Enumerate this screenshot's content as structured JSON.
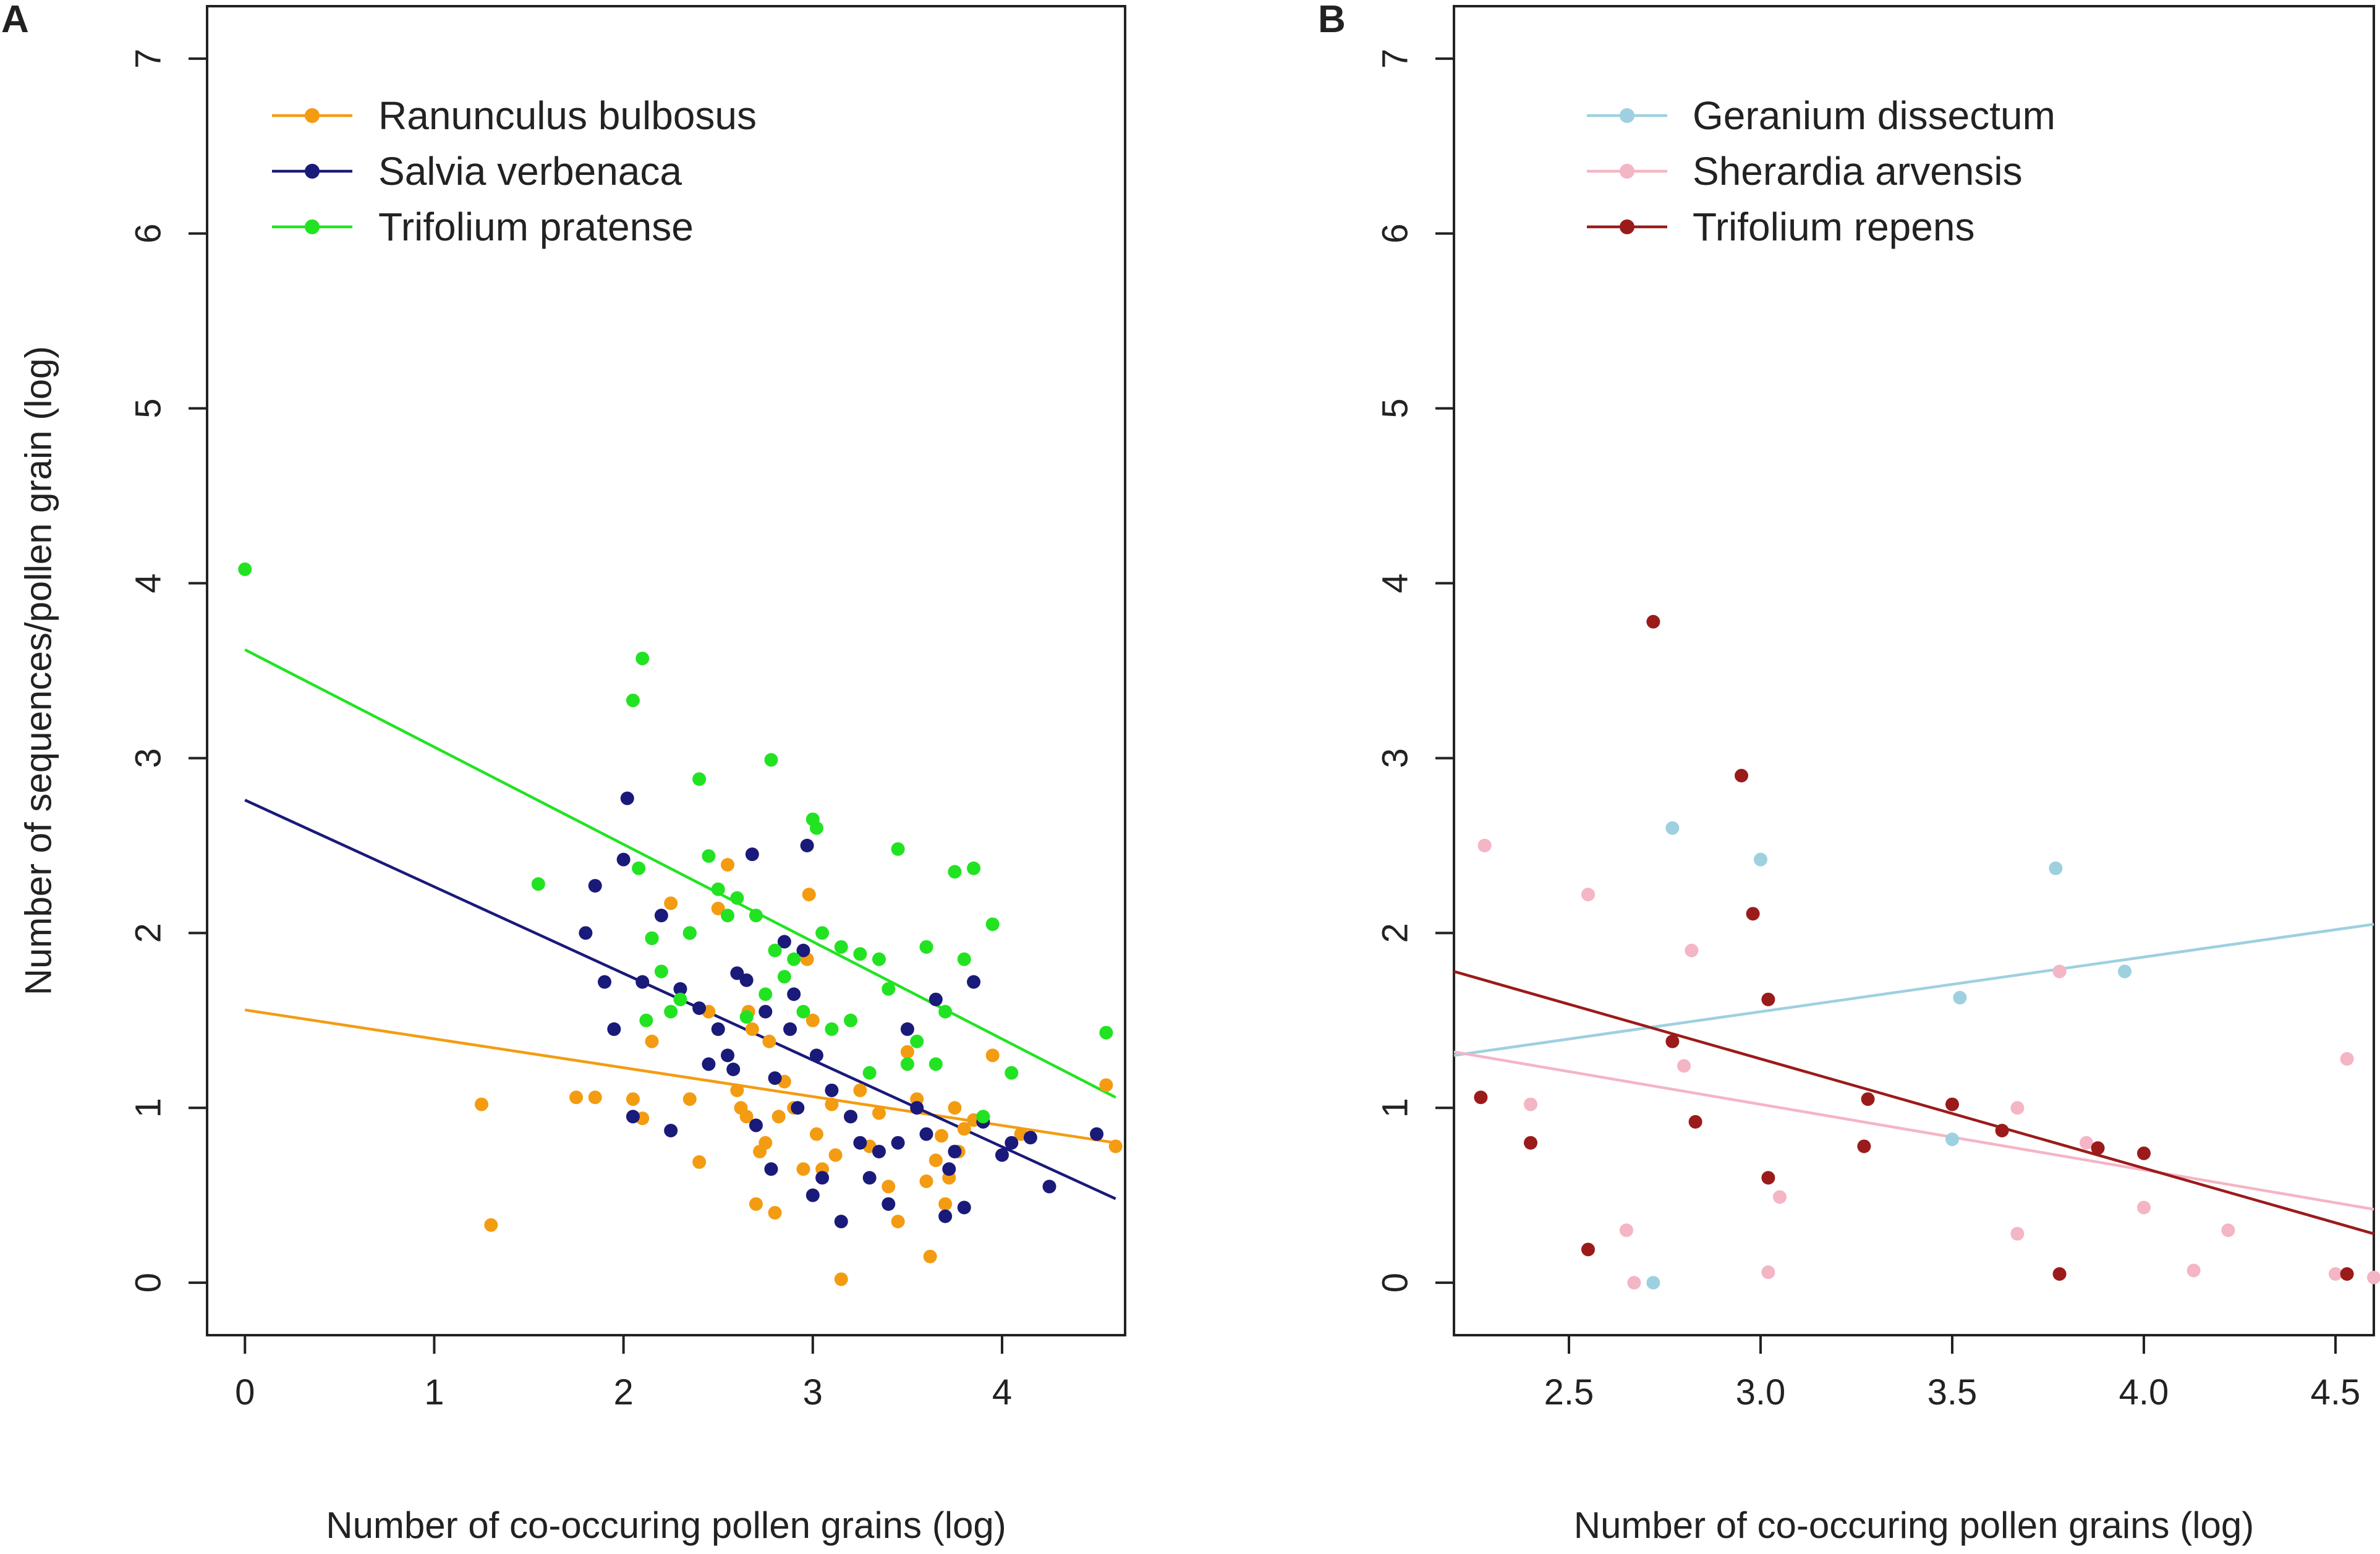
{
  "chart_data": [
    {
      "type": "scatter",
      "panel": "A",
      "xlabel": "Number of co-occuring pollen grains (log)",
      "ylabel": "Number of sequences/pollen grain (log)",
      "xlim": [
        -0.2,
        4.65
      ],
      "ylim": [
        -0.3,
        7.3
      ],
      "x_ticks": [
        0,
        1,
        2,
        3,
        4
      ],
      "y_ticks": [
        0,
        1,
        2,
        3,
        4,
        5,
        6,
        7
      ],
      "legend_position": "top-left",
      "series": [
        {
          "name": "Ranunculus bulbosus",
          "color": "#F39C12",
          "line": {
            "x": [
              0,
              4.6
            ],
            "y": [
              1.56,
              0.8
            ]
          },
          "points": [
            [
              1.25,
              1.02
            ],
            [
              1.3,
              0.33
            ],
            [
              1.75,
              1.06
            ],
            [
              1.85,
              1.06
            ],
            [
              2.05,
              1.05
            ],
            [
              2.1,
              0.94
            ],
            [
              2.15,
              1.38
            ],
            [
              2.25,
              2.17
            ],
            [
              2.35,
              1.05
            ],
            [
              2.4,
              0.69
            ],
            [
              2.45,
              1.55
            ],
            [
              2.5,
              2.14
            ],
            [
              2.55,
              2.39
            ],
            [
              2.6,
              1.1
            ],
            [
              2.62,
              1.0
            ],
            [
              2.65,
              0.95
            ],
            [
              2.66,
              1.55
            ],
            [
              2.68,
              1.45
            ],
            [
              2.7,
              0.45
            ],
            [
              2.72,
              0.75
            ],
            [
              2.75,
              0.8
            ],
            [
              2.77,
              1.38
            ],
            [
              2.8,
              0.4
            ],
            [
              2.82,
              0.95
            ],
            [
              2.85,
              1.15
            ],
            [
              2.9,
              1.0
            ],
            [
              2.95,
              0.65
            ],
            [
              2.97,
              1.85
            ],
            [
              2.98,
              2.22
            ],
            [
              3.0,
              1.5
            ],
            [
              3.02,
              0.85
            ],
            [
              3.05,
              0.65
            ],
            [
              3.1,
              1.02
            ],
            [
              3.12,
              0.73
            ],
            [
              3.15,
              0.02
            ],
            [
              3.2,
              0.95
            ],
            [
              3.25,
              1.1
            ],
            [
              3.3,
              0.78
            ],
            [
              3.35,
              0.97
            ],
            [
              3.4,
              0.55
            ],
            [
              3.45,
              0.35
            ],
            [
              3.5,
              1.32
            ],
            [
              3.55,
              1.05
            ],
            [
              3.6,
              0.58
            ],
            [
              3.62,
              0.15
            ],
            [
              3.65,
              0.7
            ],
            [
              3.68,
              0.84
            ],
            [
              3.7,
              0.45
            ],
            [
              3.72,
              0.6
            ],
            [
              3.75,
              1.0
            ],
            [
              3.77,
              0.75
            ],
            [
              3.8,
              0.88
            ],
            [
              3.85,
              0.93
            ],
            [
              3.95,
              1.3
            ],
            [
              4.1,
              0.85
            ],
            [
              4.55,
              1.13
            ],
            [
              4.6,
              0.78
            ]
          ]
        },
        {
          "name": "Salvia verbenaca",
          "color": "#1A1A7A",
          "line": {
            "x": [
              0,
              4.6
            ],
            "y": [
              2.76,
              0.48
            ]
          },
          "points": [
            [
              1.8,
              2.0
            ],
            [
              1.85,
              2.27
            ],
            [
              1.9,
              1.72
            ],
            [
              1.95,
              1.45
            ],
            [
              2.0,
              2.42
            ],
            [
              2.02,
              2.77
            ],
            [
              2.05,
              0.95
            ],
            [
              2.1,
              1.72
            ],
            [
              2.15,
              1.97
            ],
            [
              2.2,
              2.1
            ],
            [
              2.25,
              0.87
            ],
            [
              2.3,
              1.68
            ],
            [
              2.35,
              2.0
            ],
            [
              2.4,
              1.57
            ],
            [
              2.45,
              1.25
            ],
            [
              2.5,
              1.45
            ],
            [
              2.55,
              1.3
            ],
            [
              2.58,
              1.22
            ],
            [
              2.6,
              1.77
            ],
            [
              2.65,
              1.73
            ],
            [
              2.68,
              2.45
            ],
            [
              2.7,
              0.9
            ],
            [
              2.75,
              1.55
            ],
            [
              2.78,
              0.65
            ],
            [
              2.8,
              1.17
            ],
            [
              2.85,
              1.95
            ],
            [
              2.88,
              1.45
            ],
            [
              2.9,
              1.65
            ],
            [
              2.92,
              1.0
            ],
            [
              2.95,
              1.9
            ],
            [
              2.97,
              2.5
            ],
            [
              3.0,
              0.5
            ],
            [
              3.02,
              1.3
            ],
            [
              3.05,
              0.6
            ],
            [
              3.1,
              1.1
            ],
            [
              3.15,
              0.35
            ],
            [
              3.2,
              0.95
            ],
            [
              3.25,
              0.8
            ],
            [
              3.3,
              0.6
            ],
            [
              3.35,
              0.75
            ],
            [
              3.4,
              0.45
            ],
            [
              3.45,
              0.8
            ],
            [
              3.5,
              1.45
            ],
            [
              3.55,
              1.0
            ],
            [
              3.6,
              0.85
            ],
            [
              3.65,
              1.62
            ],
            [
              3.7,
              0.38
            ],
            [
              3.72,
              0.65
            ],
            [
              3.75,
              0.75
            ],
            [
              3.8,
              0.43
            ],
            [
              3.85,
              1.72
            ],
            [
              3.9,
              0.92
            ],
            [
              4.0,
              0.73
            ],
            [
              4.05,
              0.8
            ],
            [
              4.15,
              0.83
            ],
            [
              4.25,
              0.55
            ],
            [
              4.5,
              0.85
            ]
          ]
        },
        {
          "name": "Trifolium pratense",
          "color": "#22E322",
          "line": {
            "x": [
              0,
              4.6
            ],
            "y": [
              3.62,
              1.06
            ]
          },
          "points": [
            [
              0.0,
              4.08
            ],
            [
              1.55,
              2.28
            ],
            [
              2.05,
              3.33
            ],
            [
              2.1,
              3.57
            ],
            [
              2.08,
              2.37
            ],
            [
              2.12,
              1.5
            ],
            [
              2.15,
              1.97
            ],
            [
              2.2,
              1.78
            ],
            [
              2.25,
              1.55
            ],
            [
              2.3,
              1.62
            ],
            [
              2.35,
              2.0
            ],
            [
              2.4,
              2.88
            ],
            [
              2.45,
              2.44
            ],
            [
              2.5,
              2.25
            ],
            [
              2.55,
              2.1
            ],
            [
              2.6,
              2.2
            ],
            [
              2.65,
              1.52
            ],
            [
              2.7,
              2.1
            ],
            [
              2.75,
              1.65
            ],
            [
              2.78,
              2.99
            ],
            [
              2.8,
              1.9
            ],
            [
              2.85,
              1.75
            ],
            [
              2.9,
              1.85
            ],
            [
              2.95,
              1.55
            ],
            [
              3.0,
              2.65
            ],
            [
              3.02,
              2.6
            ],
            [
              3.05,
              2.0
            ],
            [
              3.1,
              1.45
            ],
            [
              3.15,
              1.92
            ],
            [
              3.2,
              1.5
            ],
            [
              3.25,
              1.88
            ],
            [
              3.3,
              1.2
            ],
            [
              3.35,
              1.85
            ],
            [
              3.4,
              1.68
            ],
            [
              3.45,
              2.48
            ],
            [
              3.5,
              1.25
            ],
            [
              3.55,
              1.38
            ],
            [
              3.6,
              1.92
            ],
            [
              3.65,
              1.25
            ],
            [
              3.7,
              1.55
            ],
            [
              3.75,
              2.35
            ],
            [
              3.8,
              1.85
            ],
            [
              3.85,
              2.37
            ],
            [
              3.9,
              0.95
            ],
            [
              3.95,
              2.05
            ],
            [
              4.05,
              1.2
            ],
            [
              4.55,
              1.43
            ]
          ]
        }
      ]
    },
    {
      "type": "scatter",
      "panel": "B",
      "xlabel": "Number of co-occuring pollen grains (log)",
      "ylabel": "",
      "xlim": [
        2.2,
        4.6
      ],
      "ylim": [
        -0.3,
        7.3
      ],
      "x_ticks": [
        2.5,
        3.0,
        3.5,
        4.0,
        4.5
      ],
      "x_tick_labels": [
        "2.5",
        "3.0",
        "3.5",
        "4.0",
        "4.5"
      ],
      "y_ticks": [
        0,
        1,
        2,
        3,
        4,
        5,
        6,
        7
      ],
      "legend_position": "top-left",
      "series": [
        {
          "name": "Geranium dissectum",
          "color": "#9ED0E0",
          "line": {
            "x": [
              2.2,
              4.6
            ],
            "y": [
              1.3,
              2.05
            ]
          },
          "points": [
            [
              2.72,
              0.0
            ],
            [
              2.77,
              2.6
            ],
            [
              3.0,
              2.42
            ],
            [
              3.5,
              0.82
            ],
            [
              3.52,
              1.63
            ],
            [
              3.77,
              2.37
            ],
            [
              3.95,
              1.78
            ]
          ]
        },
        {
          "name": "Sherardia arvensis",
          "color": "#F4B5C5",
          "line": {
            "x": [
              2.2,
              4.6
            ],
            "y": [
              1.32,
              0.42
            ]
          },
          "points": [
            [
              2.28,
              2.5
            ],
            [
              2.4,
              1.02
            ],
            [
              2.55,
              2.22
            ],
            [
              2.65,
              0.3
            ],
            [
              2.67,
              0.0
            ],
            [
              2.8,
              1.24
            ],
            [
              2.82,
              1.9
            ],
            [
              3.02,
              0.06
            ],
            [
              3.05,
              0.49
            ],
            [
              3.67,
              1.0
            ],
            [
              3.67,
              0.28
            ],
            [
              3.78,
              1.78
            ],
            [
              3.85,
              0.8
            ],
            [
              4.0,
              0.43
            ],
            [
              4.13,
              0.07
            ],
            [
              4.22,
              0.3
            ],
            [
              4.5,
              0.05
            ],
            [
              4.53,
              1.28
            ],
            [
              4.6,
              0.03
            ]
          ]
        },
        {
          "name": "Trifolium repens",
          "color": "#9B1B1B",
          "line": {
            "x": [
              2.2,
              4.6
            ],
            "y": [
              1.78,
              0.28
            ]
          },
          "points": [
            [
              2.27,
              1.06
            ],
            [
              2.4,
              0.8
            ],
            [
              2.55,
              0.19
            ],
            [
              2.72,
              3.78
            ],
            [
              2.77,
              1.38
            ],
            [
              2.83,
              0.92
            ],
            [
              2.95,
              2.9
            ],
            [
              2.98,
              2.11
            ],
            [
              3.02,
              1.62
            ],
            [
              3.02,
              0.6
            ],
            [
              3.27,
              0.78
            ],
            [
              3.28,
              1.05
            ],
            [
              3.5,
              1.02
            ],
            [
              3.63,
              0.87
            ],
            [
              3.78,
              0.05
            ],
            [
              3.88,
              0.77
            ],
            [
              4.0,
              0.74
            ],
            [
              4.53,
              0.05
            ]
          ]
        }
      ]
    }
  ],
  "panels": [
    {
      "label": "A"
    },
    {
      "label": "B"
    }
  ]
}
